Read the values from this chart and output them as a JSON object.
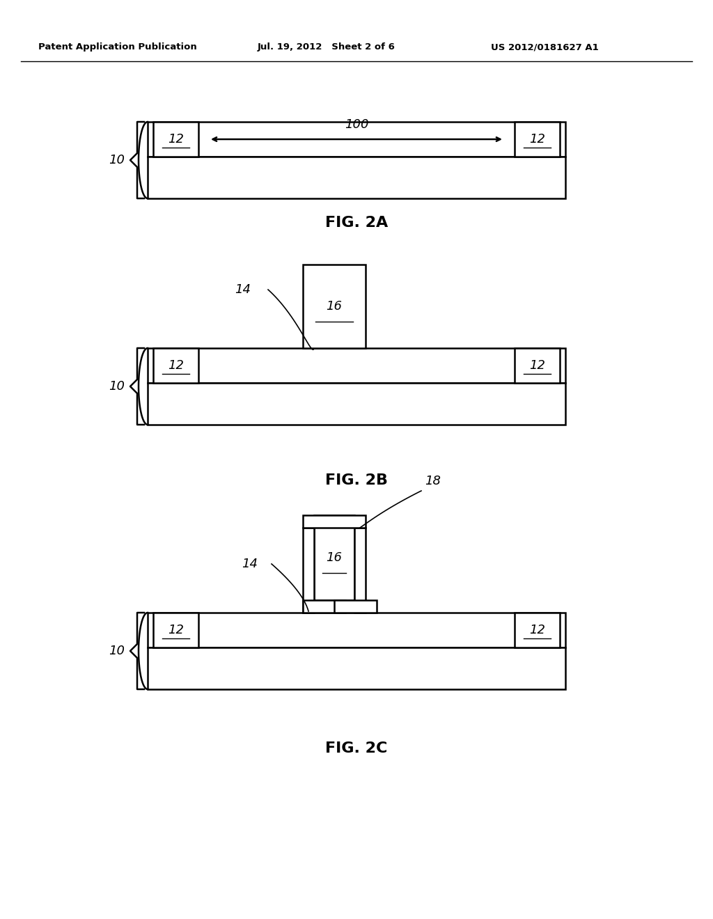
{
  "bg_color": "#ffffff",
  "line_color": "#000000",
  "header_left": "Patent Application Publication",
  "header_mid": "Jul. 19, 2012   Sheet 2 of 6",
  "header_right": "US 2012/0181627 A1",
  "fig2a_caption": "FIG. 2A",
  "fig2b_caption": "FIG. 2B",
  "fig2c_caption": "FIG. 2C",
  "label_10": "10",
  "label_12": "12",
  "label_100": "100",
  "label_14": "14",
  "label_16": "16",
  "label_18": "18",
  "figsize": [
    10.24,
    13.2
  ],
  "dpi": 100
}
